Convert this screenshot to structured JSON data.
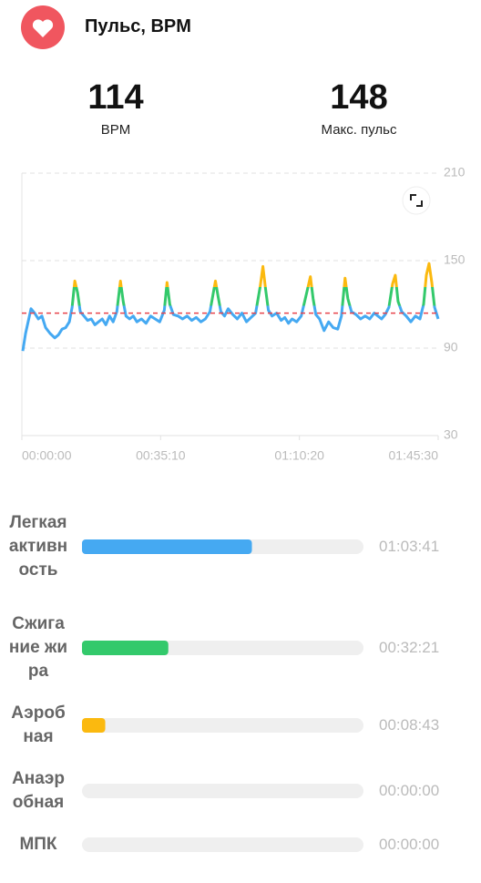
{
  "header": {
    "title": "Пульс, BPM"
  },
  "stats": [
    {
      "value": 114,
      "label": "BPM"
    },
    {
      "value": 148,
      "label": "Макс. пульс"
    }
  ],
  "chart_data": {
    "type": "line",
    "x": [
      14,
      56,
      139,
      194,
      250,
      305,
      361,
      430,
      500,
      555,
      611,
      666,
      722,
      764,
      805,
      847,
      888,
      944,
      1000,
      1055,
      1111,
      1166,
      1222,
      1277,
      1333,
      1388,
      1444,
      1499,
      1541,
      1583,
      1638,
      1694,
      1749,
      1818,
      1888,
      1957,
      2027,
      2096,
      2166,
      2207,
      2249,
      2304,
      2374,
      2443,
      2513,
      2582,
      2651,
      2721,
      2790,
      2860,
      2943,
      2985,
      3026,
      3082,
      3137,
      3207,
      3276,
      3346,
      3415,
      3484,
      3554,
      3623,
      3665,
      3707,
      3748,
      3804,
      3873,
      3942,
      3998,
      4054,
      4109,
      4178,
      4248,
      4331,
      4387,
      4428,
      4470,
      4526,
      4595,
      4664,
      4734,
      4803,
      4859,
      4914,
      4956,
      5011,
      5081,
      5150,
      5220,
      5289,
      5358,
      5414,
      5469,
      5525,
      5581,
      5636,
      5678,
      5720,
      5775,
      5844,
      5914,
      5983,
      6053,
      6108,
      6150,
      6191,
      6233,
      6275,
      6330
    ],
    "values": [
      88,
      100,
      117,
      114,
      110,
      112,
      104,
      100,
      97,
      99,
      103,
      104,
      108,
      118,
      136,
      128,
      115,
      112,
      109,
      110,
      106,
      108,
      110,
      106,
      112,
      108,
      115,
      136,
      122,
      112,
      110,
      112,
      108,
      110,
      107,
      112,
      110,
      108,
      116,
      135,
      120,
      113,
      112,
      110,
      112,
      109,
      111,
      108,
      110,
      115,
      136,
      125,
      115,
      112,
      117,
      113,
      110,
      114,
      108,
      111,
      114,
      132,
      146,
      130,
      116,
      112,
      114,
      109,
      111,
      107,
      110,
      108,
      112,
      128,
      139,
      124,
      113,
      110,
      102,
      108,
      104,
      103,
      112,
      138,
      124,
      115,
      113,
      110,
      112,
      110,
      114,
      112,
      110,
      113,
      118,
      134,
      140,
      122,
      115,
      112,
      108,
      112,
      110,
      120,
      140,
      148,
      135,
      118,
      110
    ],
    "xlim": [
      0,
      6330
    ],
    "xticks": [
      {
        "value": 0,
        "label": "00:00:00"
      },
      {
        "value": 2110,
        "label": "00:35:10"
      },
      {
        "value": 4220,
        "label": "01:10:20"
      },
      {
        "value": 6330,
        "label": "01:45:30"
      }
    ],
    "ylim": [
      30,
      210
    ],
    "yticks": [
      30,
      90,
      150,
      210
    ],
    "grid": true,
    "avg_line_color": "#e8434b"
  },
  "zones": [
    {
      "label": "Легкая активность",
      "value": 3821,
      "value_label": "01:03:41",
      "color": "#45a9f2"
    },
    {
      "label": "Сжигание жира",
      "value": 1941,
      "value_label": "00:32:21",
      "color": "#33c96b",
      "min_bpm": 119
    },
    {
      "label": "Аэробная",
      "value": 523,
      "value_label": "00:08:43",
      "color": "#fbb90f",
      "min_bpm": 132
    },
    {
      "label": "Анаэробная",
      "value": 0,
      "value_label": "00:00:00"
    },
    {
      "label": "МПК",
      "value": 0,
      "value_label": "00:00:00"
    }
  ]
}
